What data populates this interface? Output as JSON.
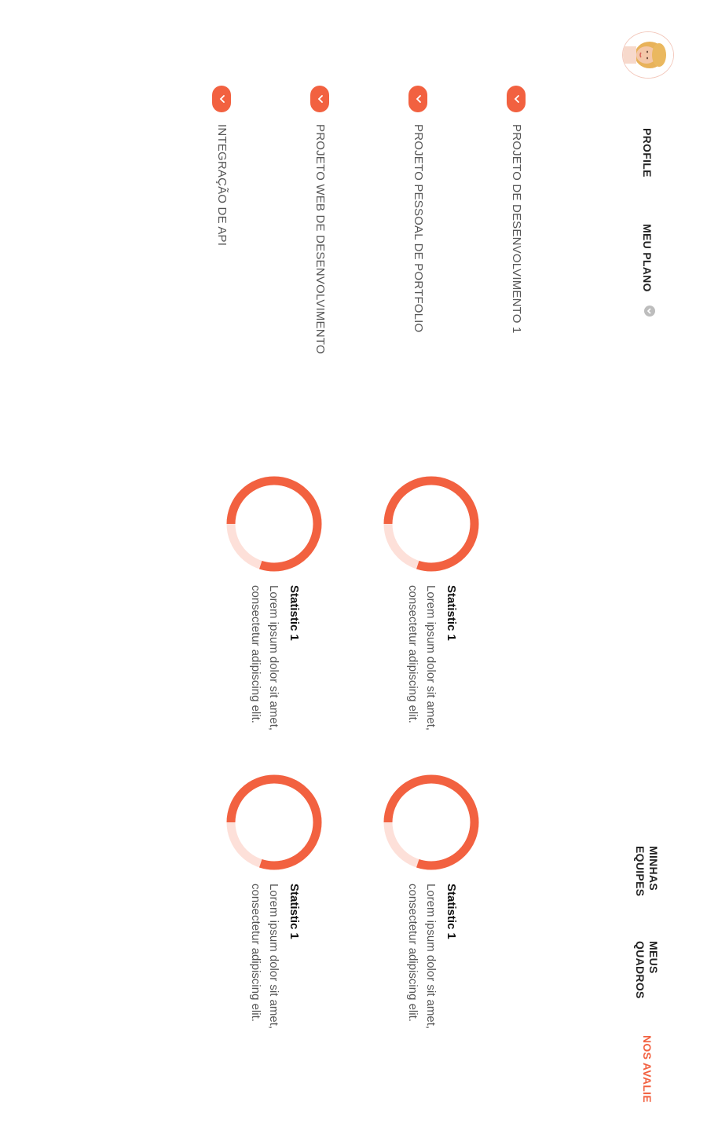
{
  "nav": {
    "profile": "PROFILE",
    "plan": "MEU PLANO",
    "teams": "MINHAS EQUIPES",
    "boards": "MEUS QUADROS",
    "rate": "NOS AVALIE"
  },
  "projects": [
    {
      "label": "PROJETO DE DESENVOLVIMENTO 1"
    },
    {
      "label": "PROJETO PESSOAL DE PORTFOLIO"
    },
    {
      "label": "PROJETO WEB DE DESENVOLVIMENTO"
    },
    {
      "label": "INTEGRAÇÃO DE API"
    }
  ],
  "stats": [
    {
      "title": "Statistic 1",
      "description": "Lorem ipsum dolor sit amet, consectetur adipiscing elit.",
      "progress": 0.8
    },
    {
      "title": "Statistic 1",
      "description": "Lorem ipsum dolor sit amet, consectetur adipiscing elit.",
      "progress": 0.8
    },
    {
      "title": "Statistic 1",
      "description": "Lorem ipsum dolor sit amet, consectetur adipiscing elit.",
      "progress": 0.8
    },
    {
      "title": "Statistic 1",
      "description": "Lorem ipsum dolor sit amet, consectetur adipiscing elit.",
      "progress": 0.8
    }
  ],
  "colors": {
    "accent": "#f26140",
    "accent_light": "#fde0d9",
    "text_dark": "#222222",
    "text_muted": "#555555"
  },
  "icons": {
    "avatar": "avatar",
    "plan_dropdown": "chevron-down-icon",
    "project_toggle": "chevron-down-icon"
  }
}
